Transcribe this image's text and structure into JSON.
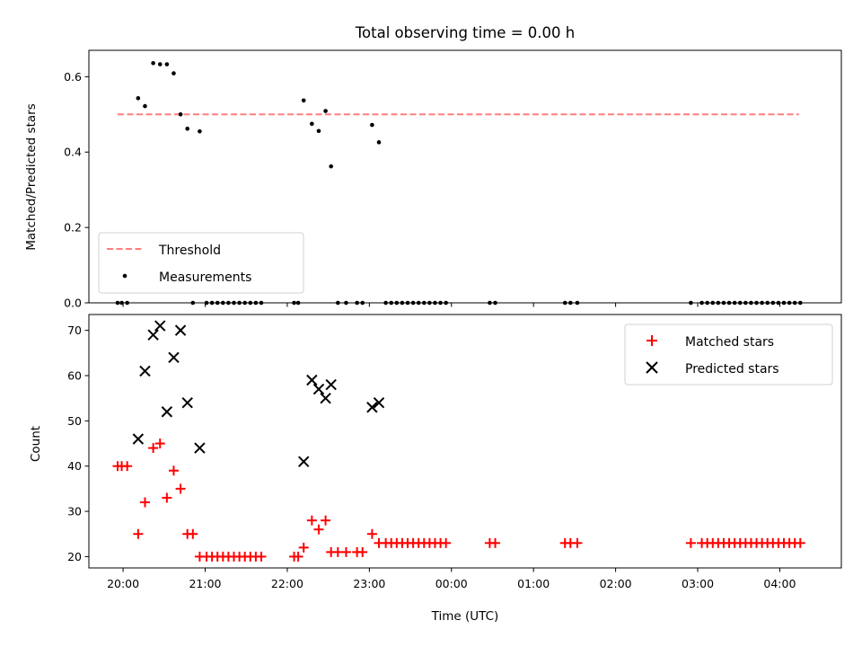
{
  "chart_data": [
    {
      "type": "scatter",
      "title": "Total observing time = 0.00 h",
      "xlabel": "",
      "ylabel": "Matched/Predicted stars",
      "xlim": [
        "19:35",
        "04:45"
      ],
      "ylim": [
        0,
        0.67
      ],
      "yticks": [
        "0.0",
        "0.2",
        "0.4",
        "0.6"
      ],
      "legend_position": "lower-left",
      "colors": {
        "threshold": "#ff7f7f",
        "measurements": "#000000"
      },
      "threshold": {
        "name": "Threshold",
        "value": 0.5,
        "x_start": "19:56",
        "x_end": "04:14"
      },
      "measurements": {
        "name": "Measurements",
        "points": [
          [
            "19:56",
            0
          ],
          [
            "19:59",
            0
          ],
          [
            "20:03",
            0
          ],
          [
            "20:11",
            0.543
          ],
          [
            "20:16",
            0.522
          ],
          [
            "20:22",
            0.636
          ],
          [
            "20:27",
            0.633
          ],
          [
            "20:32",
            0.633
          ],
          [
            "20:37",
            0.609
          ],
          [
            "20:42",
            0.5
          ],
          [
            "20:47",
            0.462
          ],
          [
            "20:51",
            0
          ],
          [
            "20:56",
            0.455
          ],
          [
            "21:01",
            0
          ],
          [
            "21:05",
            0
          ],
          [
            "21:09",
            0
          ],
          [
            "21:13",
            0
          ],
          [
            "21:17",
            0
          ],
          [
            "21:21",
            0
          ],
          [
            "21:25",
            0
          ],
          [
            "21:29",
            0
          ],
          [
            "21:33",
            0
          ],
          [
            "21:37",
            0
          ],
          [
            "21:41",
            0
          ],
          [
            "22:05",
            0
          ],
          [
            "22:08",
            0
          ],
          [
            "22:12",
            0.537
          ],
          [
            "22:18",
            0.475
          ],
          [
            "22:23",
            0.456
          ],
          [
            "22:28",
            0.509
          ],
          [
            "22:32",
            0.362
          ],
          [
            "22:37",
            0
          ],
          [
            "22:43",
            0
          ],
          [
            "22:51",
            0
          ],
          [
            "22:55",
            0
          ],
          [
            "23:02",
            0.472
          ],
          [
            "23:07",
            0.426
          ],
          [
            "23:12",
            0
          ],
          [
            "23:16",
            0
          ],
          [
            "23:20",
            0
          ],
          [
            "23:24",
            0
          ],
          [
            "23:28",
            0
          ],
          [
            "23:32",
            0
          ],
          [
            "23:36",
            0
          ],
          [
            "23:40",
            0
          ],
          [
            "23:44",
            0
          ],
          [
            "23:48",
            0
          ],
          [
            "23:52",
            0
          ],
          [
            "23:56",
            0
          ],
          [
            "00:28",
            0
          ],
          [
            "00:32",
            0
          ],
          [
            "01:23",
            0
          ],
          [
            "01:27",
            0
          ],
          [
            "01:32",
            0
          ],
          [
            "02:55",
            0
          ],
          [
            "03:03",
            0
          ],
          [
            "03:07",
            0
          ],
          [
            "03:11",
            0
          ],
          [
            "03:15",
            0
          ],
          [
            "03:19",
            0
          ],
          [
            "03:23",
            0
          ],
          [
            "03:27",
            0
          ],
          [
            "03:31",
            0
          ],
          [
            "03:35",
            0
          ],
          [
            "03:39",
            0
          ],
          [
            "03:43",
            0
          ],
          [
            "03:47",
            0
          ],
          [
            "03:51",
            0
          ],
          [
            "03:55",
            0
          ],
          [
            "03:59",
            0
          ],
          [
            "04:03",
            0
          ],
          [
            "04:07",
            0
          ],
          [
            "04:11",
            0
          ],
          [
            "04:15",
            0
          ]
        ]
      }
    },
    {
      "type": "scatter",
      "title": "",
      "xlabel": "Time (UTC)",
      "ylabel": "Count",
      "xlim": [
        "19:35",
        "04:45"
      ],
      "ylim": [
        17.5,
        73.5
      ],
      "yticks": [
        "20",
        "30",
        "40",
        "50",
        "60",
        "70"
      ],
      "xticks": [
        "20:00",
        "21:00",
        "22:00",
        "23:00",
        "00:00",
        "01:00",
        "02:00",
        "03:00",
        "04:00"
      ],
      "legend_position": "upper-right",
      "colors": {
        "matched": "#ff0000",
        "predicted": "#000000"
      },
      "series": [
        {
          "name": "Matched stars",
          "marker": "plus",
          "points": [
            [
              "19:56",
              40
            ],
            [
              "19:59",
              40
            ],
            [
              "20:03",
              40
            ],
            [
              "20:11",
              25
            ],
            [
              "20:16",
              32
            ],
            [
              "20:22",
              44
            ],
            [
              "20:27",
              45
            ],
            [
              "20:32",
              33
            ],
            [
              "20:37",
              39
            ],
            [
              "20:42",
              35
            ],
            [
              "20:47",
              25
            ],
            [
              "20:51",
              25
            ],
            [
              "20:56",
              20
            ],
            [
              "21:01",
              20
            ],
            [
              "21:05",
              20
            ],
            [
              "21:09",
              20
            ],
            [
              "21:13",
              20
            ],
            [
              "21:17",
              20
            ],
            [
              "21:21",
              20
            ],
            [
              "21:25",
              20
            ],
            [
              "21:29",
              20
            ],
            [
              "21:33",
              20
            ],
            [
              "21:37",
              20
            ],
            [
              "21:41",
              20
            ],
            [
              "22:05",
              20
            ],
            [
              "22:08",
              20
            ],
            [
              "22:12",
              22
            ],
            [
              "22:18",
              28
            ],
            [
              "22:23",
              26
            ],
            [
              "22:28",
              28
            ],
            [
              "22:32",
              21
            ],
            [
              "22:37",
              21
            ],
            [
              "22:43",
              21
            ],
            [
              "22:51",
              21
            ],
            [
              "22:55",
              21
            ],
            [
              "23:02",
              25
            ],
            [
              "23:07",
              23
            ],
            [
              "23:12",
              23
            ],
            [
              "23:16",
              23
            ],
            [
              "23:20",
              23
            ],
            [
              "23:24",
              23
            ],
            [
              "23:28",
              23
            ],
            [
              "23:32",
              23
            ],
            [
              "23:36",
              23
            ],
            [
              "23:40",
              23
            ],
            [
              "23:44",
              23
            ],
            [
              "23:48",
              23
            ],
            [
              "23:52",
              23
            ],
            [
              "23:56",
              23
            ],
            [
              "00:28",
              23
            ],
            [
              "00:32",
              23
            ],
            [
              "01:23",
              23
            ],
            [
              "01:27",
              23
            ],
            [
              "01:32",
              23
            ],
            [
              "02:55",
              23
            ],
            [
              "03:03",
              23
            ],
            [
              "03:07",
              23
            ],
            [
              "03:11",
              23
            ],
            [
              "03:15",
              23
            ],
            [
              "03:19",
              23
            ],
            [
              "03:23",
              23
            ],
            [
              "03:27",
              23
            ],
            [
              "03:31",
              23
            ],
            [
              "03:35",
              23
            ],
            [
              "03:39",
              23
            ],
            [
              "03:43",
              23
            ],
            [
              "03:47",
              23
            ],
            [
              "03:51",
              23
            ],
            [
              "03:55",
              23
            ],
            [
              "03:59",
              23
            ],
            [
              "04:03",
              23
            ],
            [
              "04:07",
              23
            ],
            [
              "04:11",
              23
            ],
            [
              "04:15",
              23
            ]
          ]
        },
        {
          "name": "Predicted stars",
          "marker": "x",
          "points": [
            [
              "20:11",
              46
            ],
            [
              "20:16",
              61
            ],
            [
              "20:22",
              69
            ],
            [
              "20:27",
              71
            ],
            [
              "20:32",
              52
            ],
            [
              "20:37",
              64
            ],
            [
              "20:42",
              70
            ],
            [
              "20:47",
              54
            ],
            [
              "20:56",
              44
            ],
            [
              "22:12",
              41
            ],
            [
              "22:18",
              59
            ],
            [
              "22:23",
              57
            ],
            [
              "22:28",
              55
            ],
            [
              "22:32",
              58
            ],
            [
              "23:02",
              53
            ],
            [
              "23:07",
              54
            ]
          ]
        }
      ]
    }
  ]
}
